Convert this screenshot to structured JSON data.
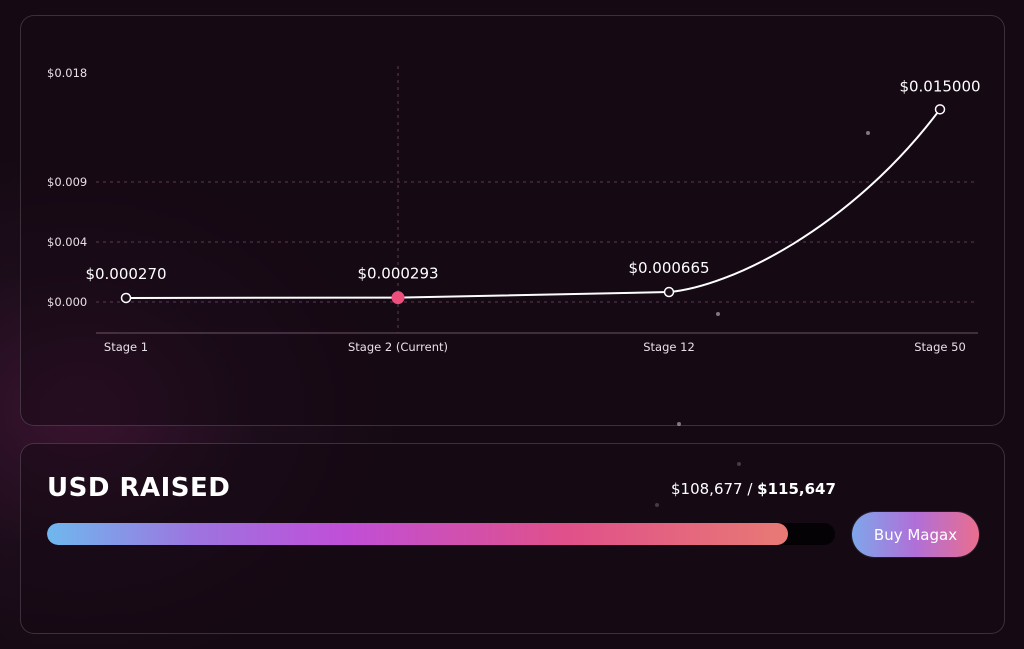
{
  "chart_data": {
    "type": "line",
    "categories": [
      "Stage 1",
      "Stage 2 (Current)",
      "Stage 12",
      "Stage 50"
    ],
    "values": [
      0.00027,
      0.000293,
      0.000665,
      0.015
    ],
    "point_labels": [
      "$0.000270",
      "$0.000293",
      "$0.000665",
      "$0.015000"
    ],
    "current_index": 1,
    "y_ticks": [
      {
        "value": 0.018,
        "label": "$0.018"
      },
      {
        "value": 0.009,
        "label": "$0.009"
      },
      {
        "value": 0.004,
        "label": "$0.004"
      },
      {
        "value": 0.0,
        "label": "$0.000"
      }
    ],
    "ylim": [
      0,
      0.018
    ],
    "grid": true,
    "colors": {
      "line": "#ffffff",
      "current_point": "#ec4f7c",
      "grid": "#5a3a55"
    }
  },
  "raise": {
    "title": "USD RAISED",
    "raised": "$108,677",
    "separator": " / ",
    "total": "$115,647",
    "progress_fraction": 0.94,
    "button_label": "Buy Magax"
  }
}
